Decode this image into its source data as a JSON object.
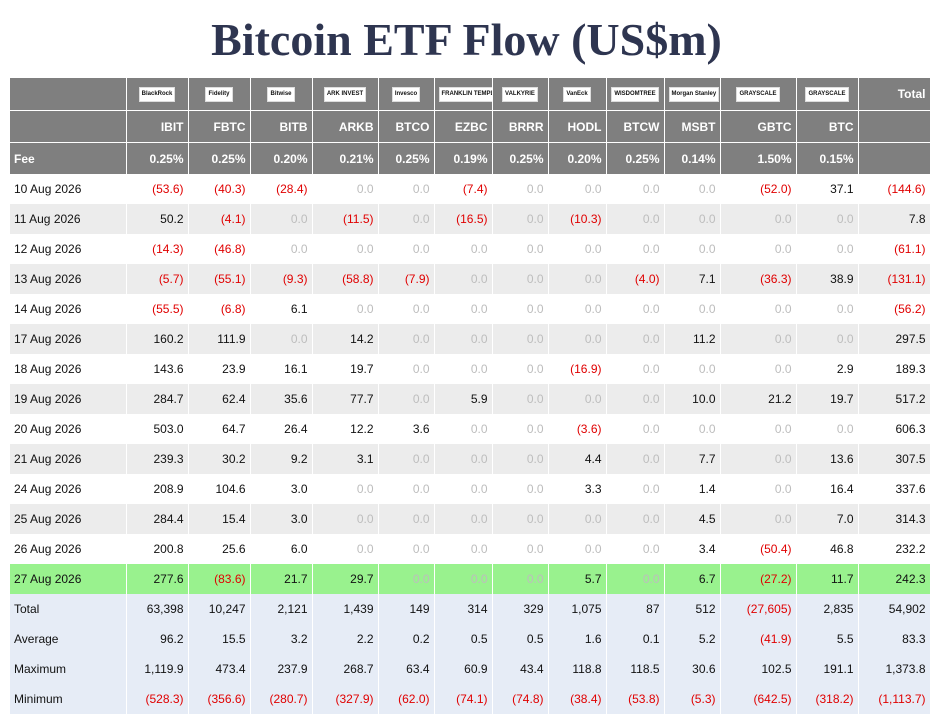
{
  "title": "Bitcoin ETF Flow (US$m)",
  "header": {
    "logos": [
      {
        "text": "BlackRock",
        "icon": "blackrock-logo"
      },
      {
        "text": "Fidelity",
        "icon": "fidelity-logo"
      },
      {
        "text": "Bitwise",
        "icon": "bitwise-logo"
      },
      {
        "text": "ARK INVEST",
        "icon": "ark-logo"
      },
      {
        "text": "Invesco",
        "icon": "invesco-logo"
      },
      {
        "text": "FRANKLIN TEMPLETON",
        "icon": "franklin-logo"
      },
      {
        "text": "VALKYRIE",
        "icon": "valkyrie-logo"
      },
      {
        "text": "VanEck",
        "icon": "vaneck-logo"
      },
      {
        "text": "WISDOMTREE",
        "icon": "wisdomtree-logo"
      },
      {
        "text": "Morgan Stanley",
        "icon": "morgan-stanley-logo"
      },
      {
        "text": "GRAYSCALE",
        "icon": "grayscale-logo"
      },
      {
        "text": "GRAYSCALE",
        "icon": "grayscale-logo"
      }
    ],
    "total_label": "Total",
    "tickers": [
      "IBIT",
      "FBTC",
      "BITB",
      "ARKB",
      "BTCO",
      "EZBC",
      "BRRR",
      "HODL",
      "BTCW",
      "MSBT",
      "GBTC",
      "BTC"
    ],
    "fee_label": "Fee",
    "fees": [
      "0.25%",
      "0.25%",
      "0.20%",
      "0.21%",
      "0.25%",
      "0.19%",
      "0.25%",
      "0.20%",
      "0.25%",
      "0.14%",
      "1.50%",
      "0.15%"
    ]
  },
  "rows": [
    {
      "date": "10 Aug 2026",
      "values": [
        "(53.6)",
        "(40.3)",
        "(28.4)",
        "0.0",
        "0.0",
        "(7.4)",
        "0.0",
        "0.0",
        "0.0",
        "0.0",
        "(52.0)",
        "37.1"
      ],
      "total": "(144.6)"
    },
    {
      "date": "11 Aug 2026",
      "values": [
        "50.2",
        "(4.1)",
        "0.0",
        "(11.5)",
        "0.0",
        "(16.5)",
        "0.0",
        "(10.3)",
        "0.0",
        "0.0",
        "0.0",
        "0.0"
      ],
      "total": "7.8"
    },
    {
      "date": "12 Aug 2026",
      "values": [
        "(14.3)",
        "(46.8)",
        "0.0",
        "0.0",
        "0.0",
        "0.0",
        "0.0",
        "0.0",
        "0.0",
        "0.0",
        "0.0",
        "0.0"
      ],
      "total": "(61.1)"
    },
    {
      "date": "13 Aug 2026",
      "values": [
        "(5.7)",
        "(55.1)",
        "(9.3)",
        "(58.8)",
        "(7.9)",
        "0.0",
        "0.0",
        "0.0",
        "(4.0)",
        "7.1",
        "(36.3)",
        "38.9"
      ],
      "total": "(131.1)"
    },
    {
      "date": "14 Aug 2026",
      "values": [
        "(55.5)",
        "(6.8)",
        "6.1",
        "0.0",
        "0.0",
        "0.0",
        "0.0",
        "0.0",
        "0.0",
        "0.0",
        "0.0",
        "0.0"
      ],
      "total": "(56.2)"
    },
    {
      "date": "17 Aug 2026",
      "values": [
        "160.2",
        "111.9",
        "0.0",
        "14.2",
        "0.0",
        "0.0",
        "0.0",
        "0.0",
        "0.0",
        "11.2",
        "0.0",
        "0.0"
      ],
      "total": "297.5"
    },
    {
      "date": "18 Aug 2026",
      "values": [
        "143.6",
        "23.9",
        "16.1",
        "19.7",
        "0.0",
        "0.0",
        "0.0",
        "(16.9)",
        "0.0",
        "0.0",
        "0.0",
        "2.9"
      ],
      "total": "189.3"
    },
    {
      "date": "19 Aug 2026",
      "values": [
        "284.7",
        "62.4",
        "35.6",
        "77.7",
        "0.0",
        "5.9",
        "0.0",
        "0.0",
        "0.0",
        "10.0",
        "21.2",
        "19.7"
      ],
      "total": "517.2"
    },
    {
      "date": "20 Aug 2026",
      "values": [
        "503.0",
        "64.7",
        "26.4",
        "12.2",
        "3.6",
        "0.0",
        "0.0",
        "(3.6)",
        "0.0",
        "0.0",
        "0.0",
        "0.0"
      ],
      "total": "606.3"
    },
    {
      "date": "21 Aug 2026",
      "values": [
        "239.3",
        "30.2",
        "9.2",
        "3.1",
        "0.0",
        "0.0",
        "0.0",
        "4.4",
        "0.0",
        "7.7",
        "0.0",
        "13.6"
      ],
      "total": "307.5"
    },
    {
      "date": "24 Aug 2026",
      "values": [
        "208.9",
        "104.6",
        "3.0",
        "0.0",
        "0.0",
        "0.0",
        "0.0",
        "3.3",
        "0.0",
        "1.4",
        "0.0",
        "16.4"
      ],
      "total": "337.6"
    },
    {
      "date": "25 Aug 2026",
      "values": [
        "284.4",
        "15.4",
        "3.0",
        "0.0",
        "0.0",
        "0.0",
        "0.0",
        "0.0",
        "0.0",
        "4.5",
        "0.0",
        "7.0"
      ],
      "total": "314.3"
    },
    {
      "date": "26 Aug 2026",
      "values": [
        "200.8",
        "25.6",
        "6.0",
        "0.0",
        "0.0",
        "0.0",
        "0.0",
        "0.0",
        "0.0",
        "3.4",
        "(50.4)",
        "46.8"
      ],
      "total": "232.2"
    },
    {
      "date": "27 Aug 2026",
      "values": [
        "277.6",
        "(83.6)",
        "21.7",
        "29.7",
        "0.0",
        "0.0",
        "0.0",
        "5.7",
        "0.0",
        "6.7",
        "(27.2)",
        "11.7"
      ],
      "total": "242.3",
      "highlight": true
    }
  ],
  "summary": [
    {
      "label": "Total",
      "values": [
        "63,398",
        "10,247",
        "2,121",
        "1,439",
        "149",
        "314",
        "329",
        "1,075",
        "87",
        "512",
        "(27,605)",
        "2,835"
      ],
      "total": "54,902"
    },
    {
      "label": "Average",
      "values": [
        "96.2",
        "15.5",
        "3.2",
        "2.2",
        "0.2",
        "0.5",
        "0.5",
        "1.6",
        "0.1",
        "5.2",
        "(41.9)",
        "5.5"
      ],
      "total": "83.3"
    },
    {
      "label": "Maximum",
      "values": [
        "1,119.9",
        "473.4",
        "237.9",
        "268.7",
        "63.4",
        "60.9",
        "43.4",
        "118.8",
        "118.5",
        "30.6",
        "102.5",
        "191.1"
      ],
      "total": "1,373.8"
    },
    {
      "label": "Minimum",
      "values": [
        "(528.3)",
        "(356.6)",
        "(280.7)",
        "(327.9)",
        "(62.0)",
        "(74.1)",
        "(74.8)",
        "(38.4)",
        "(53.8)",
        "(5.3)",
        "(642.5)",
        "(318.2)"
      ],
      "total": "(1,113.7)"
    }
  ],
  "colors": {
    "header_bg": "#7f7f7f",
    "negative": "#e00000",
    "zero": "#bdbdbd",
    "highlight": "#99f28e",
    "summary_bg": "#e6ecf6",
    "title": "#2e3550"
  }
}
